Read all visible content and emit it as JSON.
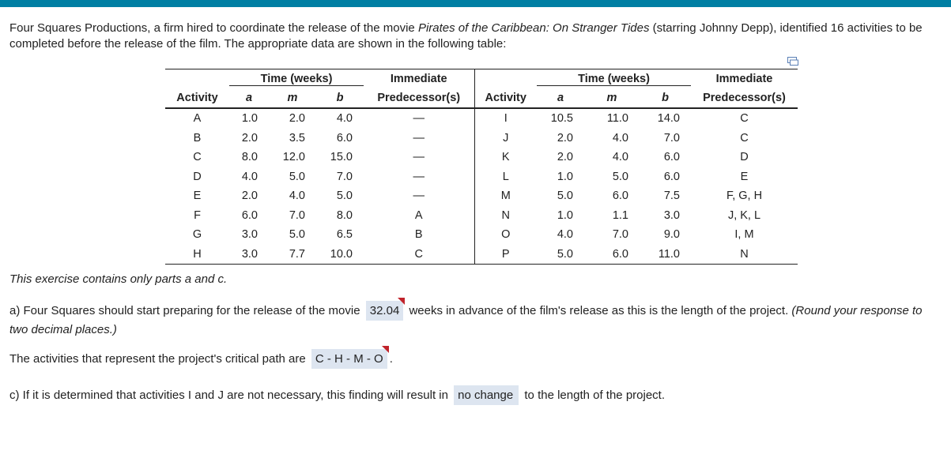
{
  "intro": {
    "part1": "Four Squares Productions, a firm hired to coordinate the release of the movie ",
    "movie": "Pirates of the Caribbean: On Stranger Tides",
    "part2": " (starring Johnny Depp), identified 16 activities to be completed before the release of the film. The appropriate data are shown in the following table:"
  },
  "table": {
    "headers": {
      "time": "Time (weeks)",
      "immediate": "Immediate",
      "activity": "Activity",
      "a": "a",
      "m": "m",
      "b": "b",
      "predecessors": "Predecessor(s)"
    },
    "left": [
      {
        "activity": "A",
        "a": "1.0",
        "m": "2.0",
        "b": "4.0",
        "pred": "—"
      },
      {
        "activity": "B",
        "a": "2.0",
        "m": "3.5",
        "b": "6.0",
        "pred": "—"
      },
      {
        "activity": "C",
        "a": "8.0",
        "m": "12.0",
        "b": "15.0",
        "pred": "—"
      },
      {
        "activity": "D",
        "a": "4.0",
        "m": "5.0",
        "b": "7.0",
        "pred": "—"
      },
      {
        "activity": "E",
        "a": "2.0",
        "m": "4.0",
        "b": "5.0",
        "pred": "—"
      },
      {
        "activity": "F",
        "a": "6.0",
        "m": "7.0",
        "b": "8.0",
        "pred": "A"
      },
      {
        "activity": "G",
        "a": "3.0",
        "m": "5.0",
        "b": "6.5",
        "pred": "B"
      },
      {
        "activity": "H",
        "a": "3.0",
        "m": "7.7",
        "b": "10.0",
        "pred": "C"
      }
    ],
    "right": [
      {
        "activity": "I",
        "a": "10.5",
        "m": "11.0",
        "b": "14.0",
        "pred": "C"
      },
      {
        "activity": "J",
        "a": "2.0",
        "m": "4.0",
        "b": "7.0",
        "pred": "C"
      },
      {
        "activity": "K",
        "a": "2.0",
        "m": "4.0",
        "b": "6.0",
        "pred": "D"
      },
      {
        "activity": "L",
        "a": "1.0",
        "m": "5.0",
        "b": "6.0",
        "pred": "E"
      },
      {
        "activity": "M",
        "a": "5.0",
        "m": "6.0",
        "b": "7.5",
        "pred": "F, G, H"
      },
      {
        "activity": "N",
        "a": "1.0",
        "m": "1.1",
        "b": "3.0",
        "pred": "J, K, L"
      },
      {
        "activity": "O",
        "a": "4.0",
        "m": "7.0",
        "b": "9.0",
        "pred": "I, M"
      },
      {
        "activity": "P",
        "a": "5.0",
        "m": "6.0",
        "b": "11.0",
        "pred": "N"
      }
    ]
  },
  "note": "This exercise contains only parts a and c.",
  "part_a": {
    "before": "a) Four Squares should start preparing for the release of the movie ",
    "answer": "32.04",
    "after": " weeks in advance of the film's release as this is the length of the project. ",
    "hint": "(Round your response to two decimal places.)"
  },
  "part_b": {
    "before": "The activities that represent the project's critical path are ",
    "answer": "C - H - M - O",
    "after": "."
  },
  "part_c": {
    "before": "c) If it is determined that activities I and J are not necessary, this finding will result in ",
    "answer": "no change",
    "after": " to the length of the project."
  },
  "colors": {
    "topbar": "#007fa3",
    "answer_bg": "#dde5f0",
    "flag": "#c0232b"
  }
}
